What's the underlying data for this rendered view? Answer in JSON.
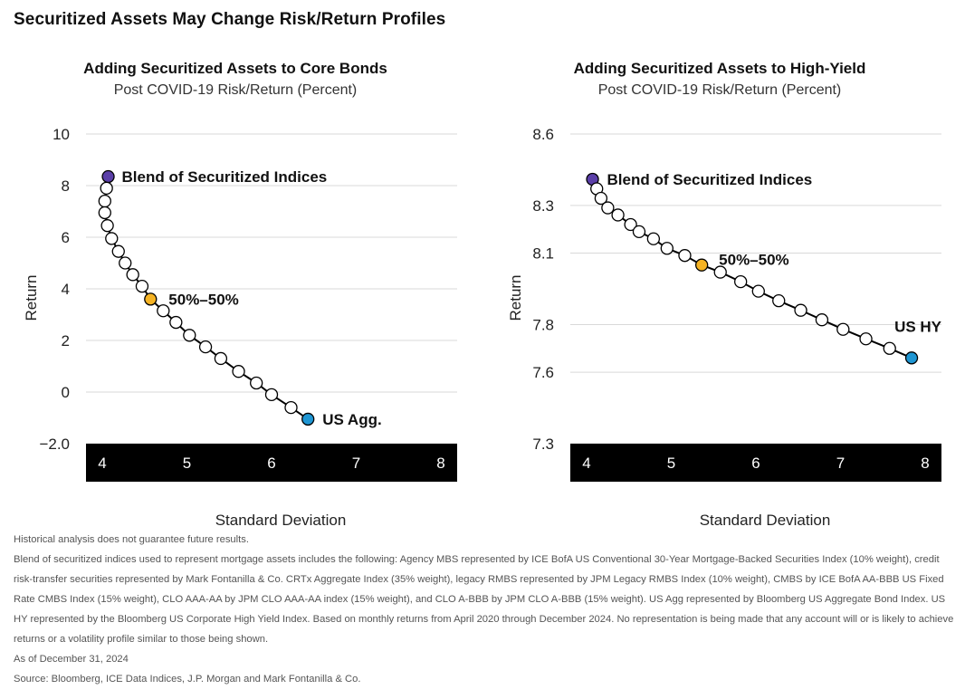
{
  "page": {
    "title": "Securitized Assets May Change Risk/Return Profiles"
  },
  "colors": {
    "grid": "#d9d9d9",
    "axis_band": "#000000",
    "line": "#000000",
    "point_fill": "#ffffff",
    "blend": "#5b3fa8",
    "fifty_fifty": "#f5b324",
    "endpoint": "#1f96d3"
  },
  "chart_data": [
    {
      "type": "line",
      "title": "Adding Securitized Assets to Core Bonds",
      "subtitle": "Post COVID-19 Risk/Return (Percent)",
      "xlabel": "Standard Deviation",
      "ylabel": "Return",
      "xlim": [
        4,
        8
      ],
      "ylim": [
        -2,
        10
      ],
      "xticks": [
        "4",
        "5",
        "6",
        "7",
        "8"
      ],
      "yticks": [
        "10",
        "8",
        "6",
        "4",
        "2",
        "0",
        "−2.0"
      ],
      "yticks_values": [
        10,
        8,
        6,
        4,
        2,
        0,
        -2
      ],
      "grid": true,
      "series": [
        {
          "points": [
            [
              4.07,
              8.35
            ],
            [
              4.05,
              7.9
            ],
            [
              4.03,
              7.4
            ],
            [
              4.03,
              6.95
            ],
            [
              4.06,
              6.45
            ],
            [
              4.11,
              5.95
            ],
            [
              4.19,
              5.45
            ],
            [
              4.27,
              5.0
            ],
            [
              4.36,
              4.55
            ],
            [
              4.47,
              4.1
            ],
            [
              4.57,
              3.6
            ],
            [
              4.72,
              3.15
            ],
            [
              4.87,
              2.7
            ],
            [
              5.03,
              2.2
            ],
            [
              5.22,
              1.75
            ],
            [
              5.4,
              1.3
            ],
            [
              5.61,
              0.8
            ],
            [
              5.82,
              0.35
            ],
            [
              6.0,
              -0.1
            ],
            [
              6.23,
              -0.6
            ],
            [
              6.43,
              -1.05
            ]
          ]
        }
      ],
      "annotations": [
        {
          "label": "Blend of Securitized Indices",
          "x": 4.07,
          "y": 8.35,
          "role": "blend"
        },
        {
          "label": "50%–50%",
          "x": 4.57,
          "y": 3.6,
          "role": "fifty"
        },
        {
          "label": "US Agg.",
          "x": 6.43,
          "y": -1.05,
          "role": "end"
        }
      ]
    },
    {
      "type": "line",
      "title": "Adding Securitized Assets to High-Yield",
      "subtitle": "Post COVID-19 Risk/Return (Percent)",
      "xlabel": "Standard Deviation",
      "ylabel": "Return",
      "xlim": [
        4,
        8
      ],
      "ylim": [
        7.3,
        8.6
      ],
      "xticks": [
        "4",
        "5",
        "6",
        "7",
        "8"
      ],
      "yticks": [
        "8.6",
        "8.3",
        "8.1",
        "7.8",
        "7.6",
        "7.3"
      ],
      "yticks_values": [
        8.6,
        8.3,
        8.1,
        7.8,
        7.6,
        7.3
      ],
      "grid": true,
      "series": [
        {
          "points": [
            [
              4.07,
              8.41
            ],
            [
              4.12,
              8.37
            ],
            [
              4.17,
              8.33
            ],
            [
              4.25,
              8.29
            ],
            [
              4.37,
              8.26
            ],
            [
              4.52,
              8.22
            ],
            [
              4.62,
              8.19
            ],
            [
              4.79,
              8.16
            ],
            [
              4.95,
              8.12
            ],
            [
              5.16,
              8.09
            ],
            [
              5.36,
              8.05
            ],
            [
              5.58,
              8.02
            ],
            [
              5.82,
              7.98
            ],
            [
              6.03,
              7.94
            ],
            [
              6.27,
              7.9
            ],
            [
              6.53,
              7.86
            ],
            [
              6.78,
              7.82
            ],
            [
              7.03,
              7.78
            ],
            [
              7.3,
              7.74
            ],
            [
              7.58,
              7.7
            ],
            [
              7.84,
              7.66
            ]
          ]
        }
      ],
      "annotations": [
        {
          "label": "Blend of Securitized Indices",
          "x": 4.07,
          "y": 8.41,
          "role": "blend"
        },
        {
          "label": "50%–50%",
          "x": 5.36,
          "y": 8.05,
          "role": "fifty"
        },
        {
          "label": "US HY",
          "x": 7.84,
          "y": 7.66,
          "role": "end"
        }
      ]
    }
  ],
  "footnotes": [
    "Historical analysis does not guarantee future results.",
    "Blend of securitized indices used to represent mortgage assets includes the following: Agency MBS represented by ICE BofA US Conventional 30-Year Mortgage-Backed Securities Index (10% weight), credit risk-transfer securities represented by Mark Fontanilla & Co. CRTx Aggregate Index (35% weight), legacy RMBS represented by JPM Legacy RMBS Index (10% weight), CMBS by ICE BofA AA-BBB US Fixed Rate CMBS Index (15% weight), CLO AAA-AA by JPM CLO AAA-AA index (15% weight), and CLO A-BBB by JPM CLO A-BBB (15% weight). US Agg represented by Bloomberg US Aggregate Bond Index. US HY represented by the Bloomberg US Corporate High Yield Index. Based on monthly returns from April 2020 through December 2024. No representation is being made that any account will or is likely to achieve returns or a volatility profile similar to those being shown.",
    "As of December 31, 2024",
    "Source: Bloomberg, ICE Data Indices, J.P. Morgan and Mark Fontanilla & Co."
  ]
}
